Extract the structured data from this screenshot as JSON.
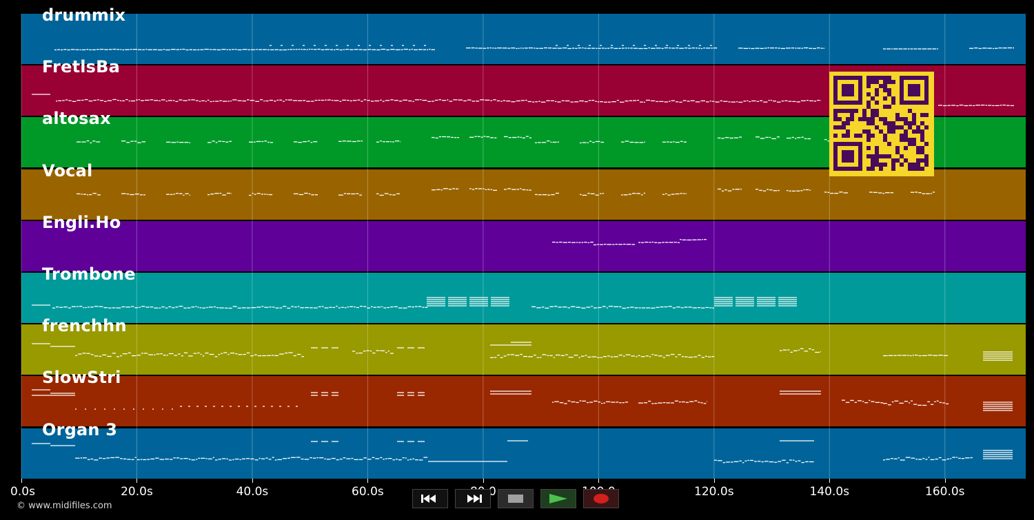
{
  "tracks": [
    {
      "name": "drummix",
      "color": "#00649a"
    },
    {
      "name": "FretlsBa",
      "color": "#990033"
    },
    {
      "name": "altosax",
      "color": "#009928"
    },
    {
      "name": "Vocal",
      "color": "#996400"
    },
    {
      "name": "Engli.Ho",
      "color": "#5f0099"
    },
    {
      "name": "Trombone",
      "color": "#009a9a"
    },
    {
      "name": "frenchhn",
      "color": "#999900"
    },
    {
      "name": "SlowStri",
      "color": "#992800"
    },
    {
      "name": "Organ 3",
      "color": "#00649a"
    }
  ],
  "timeline": {
    "ticks": [
      "0.0s",
      "20.0s",
      "40.0s",
      "60.0s",
      "80.0",
      "100.0",
      "120.0s",
      "140.0s",
      "160.0s"
    ],
    "tick_seconds": [
      0,
      20,
      40,
      60,
      80,
      100,
      120,
      140,
      160
    ],
    "duration_seconds": 174
  },
  "copyright": "© www.midifiles.com",
  "controls": {
    "rewind_icon": "rewind-icon",
    "forward_icon": "fast-forward-icon",
    "stop_icon": "stop-icon",
    "play_icon": "play-icon",
    "record_icon": "record-icon"
  },
  "qr_code": {
    "fg": "#4a0a5a",
    "bg": "#f5d629"
  }
}
